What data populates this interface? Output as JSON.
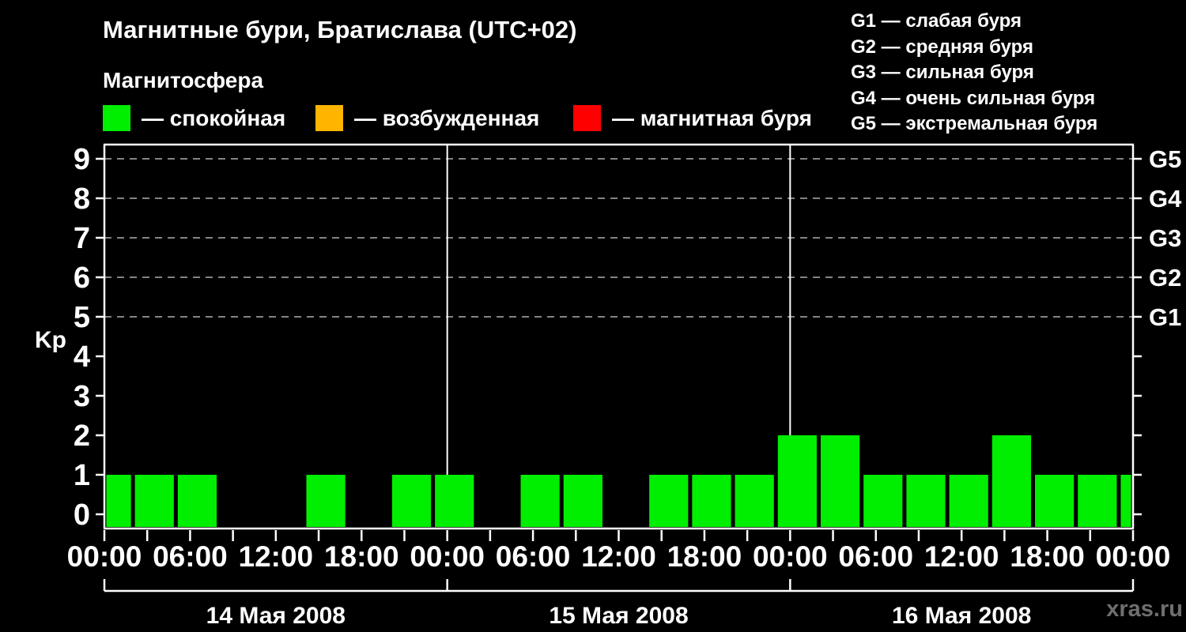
{
  "header": {
    "title": "Магнитные бури, Братислава (UTC+02)",
    "subtitle": "Магнитосфера"
  },
  "legend": {
    "items": [
      {
        "name": "quiet",
        "label": "— спокойная",
        "color": "#00ee00"
      },
      {
        "name": "excited",
        "label": "— возбужденная",
        "color": "#ffb400"
      },
      {
        "name": "storm",
        "label": "— магнитная буря",
        "color": "#ff0000"
      }
    ]
  },
  "g_legend": {
    "lines": [
      "G1 — слабая буря",
      "G2 — средняя буря",
      "G3 — сильная буря",
      "G4 — очень сильная буря",
      "G5 — экстремальная буря"
    ]
  },
  "watermark": "xras.ru",
  "colors": {
    "background": "#000000",
    "axis": "#ffffff",
    "grid": "#b0b0b0",
    "text": "#ffffff",
    "watermark": "#6f6f6f"
  },
  "chart_data": {
    "type": "bar",
    "title": "Магнитные бури, Братислава (UTC+02)",
    "xlabel": "",
    "ylabel": "Kp",
    "ylim": [
      0,
      9
    ],
    "hours_span": 72,
    "bar_interval_hours": 3,
    "utc_offset_hours": 2,
    "grid_on": true,
    "grid_kp_levels": [
      5,
      6,
      7,
      8,
      9
    ],
    "y_ticks": [
      0,
      1,
      2,
      3,
      4,
      5,
      6,
      7,
      8,
      9
    ],
    "right_axis_labels": [
      {
        "kp": 5,
        "label": "G1"
      },
      {
        "kp": 6,
        "label": "G2"
      },
      {
        "kp": 7,
        "label": "G3"
      },
      {
        "kp": 8,
        "label": "G4"
      },
      {
        "kp": 9,
        "label": "G5"
      }
    ],
    "x_labels": [
      {
        "hour": 0,
        "text": "00:00"
      },
      {
        "hour": 6,
        "text": "06:00"
      },
      {
        "hour": 12,
        "text": "12:00"
      },
      {
        "hour": 18,
        "text": "18:00"
      },
      {
        "hour": 24,
        "text": "00:00"
      },
      {
        "hour": 30,
        "text": "06:00"
      },
      {
        "hour": 36,
        "text": "12:00"
      },
      {
        "hour": 42,
        "text": "18:00"
      },
      {
        "hour": 48,
        "text": "00:00"
      },
      {
        "hour": 54,
        "text": "06:00"
      },
      {
        "hour": 60,
        "text": "12:00"
      },
      {
        "hour": 66,
        "text": "18:00"
      },
      {
        "hour": 72,
        "text": "00:00"
      }
    ],
    "day_boundaries_hours": [
      0,
      24,
      48,
      72
    ],
    "days": [
      {
        "label": "14 Мая 2008",
        "start_hour": 0
      },
      {
        "label": "15 Мая 2008",
        "start_hour": 24
      },
      {
        "label": "16 Мая 2008",
        "start_hour": 48
      }
    ],
    "kp_series": [
      {
        "start_local_hour": -1,
        "kp": 1
      },
      {
        "start_local_hour": 2,
        "kp": 1
      },
      {
        "start_local_hour": 5,
        "kp": 1
      },
      {
        "start_local_hour": 8,
        "kp": 0
      },
      {
        "start_local_hour": 11,
        "kp": 0
      },
      {
        "start_local_hour": 14,
        "kp": 1
      },
      {
        "start_local_hour": 17,
        "kp": 0
      },
      {
        "start_local_hour": 20,
        "kp": 1
      },
      {
        "start_local_hour": 23,
        "kp": 1
      },
      {
        "start_local_hour": 26,
        "kp": 0
      },
      {
        "start_local_hour": 29,
        "kp": 1
      },
      {
        "start_local_hour": 32,
        "kp": 1
      },
      {
        "start_local_hour": 35,
        "kp": 0
      },
      {
        "start_local_hour": 38,
        "kp": 1
      },
      {
        "start_local_hour": 41,
        "kp": 1
      },
      {
        "start_local_hour": 44,
        "kp": 1
      },
      {
        "start_local_hour": 47,
        "kp": 2
      },
      {
        "start_local_hour": 50,
        "kp": 2
      },
      {
        "start_local_hour": 53,
        "kp": 1
      },
      {
        "start_local_hour": 56,
        "kp": 1
      },
      {
        "start_local_hour": 59,
        "kp": 1
      },
      {
        "start_local_hour": 62,
        "kp": 2
      },
      {
        "start_local_hour": 65,
        "kp": 1
      },
      {
        "start_local_hour": 68,
        "kp": 1
      },
      {
        "start_local_hour": 71,
        "kp": 1
      }
    ]
  }
}
